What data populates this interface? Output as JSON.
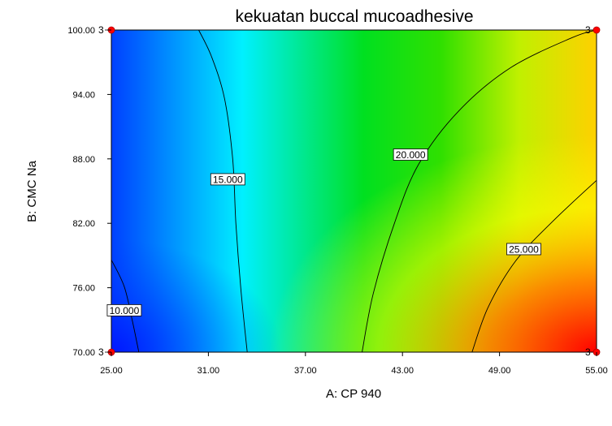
{
  "chart_data": {
    "type": "heatmap",
    "subtype": "contour",
    "title": "kekuatan buccal mucoadhesive",
    "xlabel": "A: CP 940",
    "ylabel": "B: CMC Na",
    "xlim": [
      25,
      55
    ],
    "ylim": [
      70,
      100
    ],
    "xticks": [
      "25.00",
      "31.00",
      "37.00",
      "43.00",
      "49.00",
      "55.00"
    ],
    "yticks": [
      "70.00",
      "76.00",
      "82.00",
      "88.00",
      "94.00",
      "100.00"
    ],
    "colormap": [
      "#0040ff",
      "#00e0ff",
      "#00e020",
      "#40e000",
      "#e0ff00",
      "#ff0000"
    ],
    "contours": [
      {
        "label": "10.000",
        "label_at": [
          25.8,
          73.9
        ],
        "points": [
          [
            25,
            78.6
          ],
          [
            25.8,
            76.1
          ],
          [
            26.3,
            72.9
          ],
          [
            26.7,
            70
          ]
        ]
      },
      {
        "label": "15.000",
        "label_at": [
          32.2,
          86.1
        ],
        "points": [
          [
            30.4,
            100
          ],
          [
            31.2,
            97.5
          ],
          [
            32,
            93.6
          ],
          [
            32.5,
            88
          ],
          [
            32.7,
            82
          ],
          [
            33,
            76
          ],
          [
            33.4,
            70
          ]
        ]
      },
      {
        "label": "20.000",
        "label_at": [
          43.5,
          88.4
        ],
        "points": [
          [
            40.5,
            70
          ],
          [
            41.2,
            75.5
          ],
          [
            42.5,
            82
          ],
          [
            44,
            87.5
          ],
          [
            46.5,
            92.5
          ],
          [
            49.7,
            96.5
          ],
          [
            53.5,
            99.3
          ],
          [
            55,
            100
          ]
        ]
      },
      {
        "label": "25.000",
        "label_at": [
          50.5,
          79.6
        ],
        "points": [
          [
            47.3,
            70
          ],
          [
            48.3,
            74.2
          ],
          [
            50,
            78.5
          ],
          [
            52.3,
            82.2
          ],
          [
            55,
            86
          ]
        ]
      }
    ],
    "design_points": [
      {
        "x": 25,
        "y": 100,
        "label": "3"
      },
      {
        "x": 55,
        "y": 100,
        "label": "3"
      },
      {
        "x": 25,
        "y": 70,
        "label": "3"
      },
      {
        "x": 55,
        "y": 70,
        "label": "3"
      }
    ]
  }
}
